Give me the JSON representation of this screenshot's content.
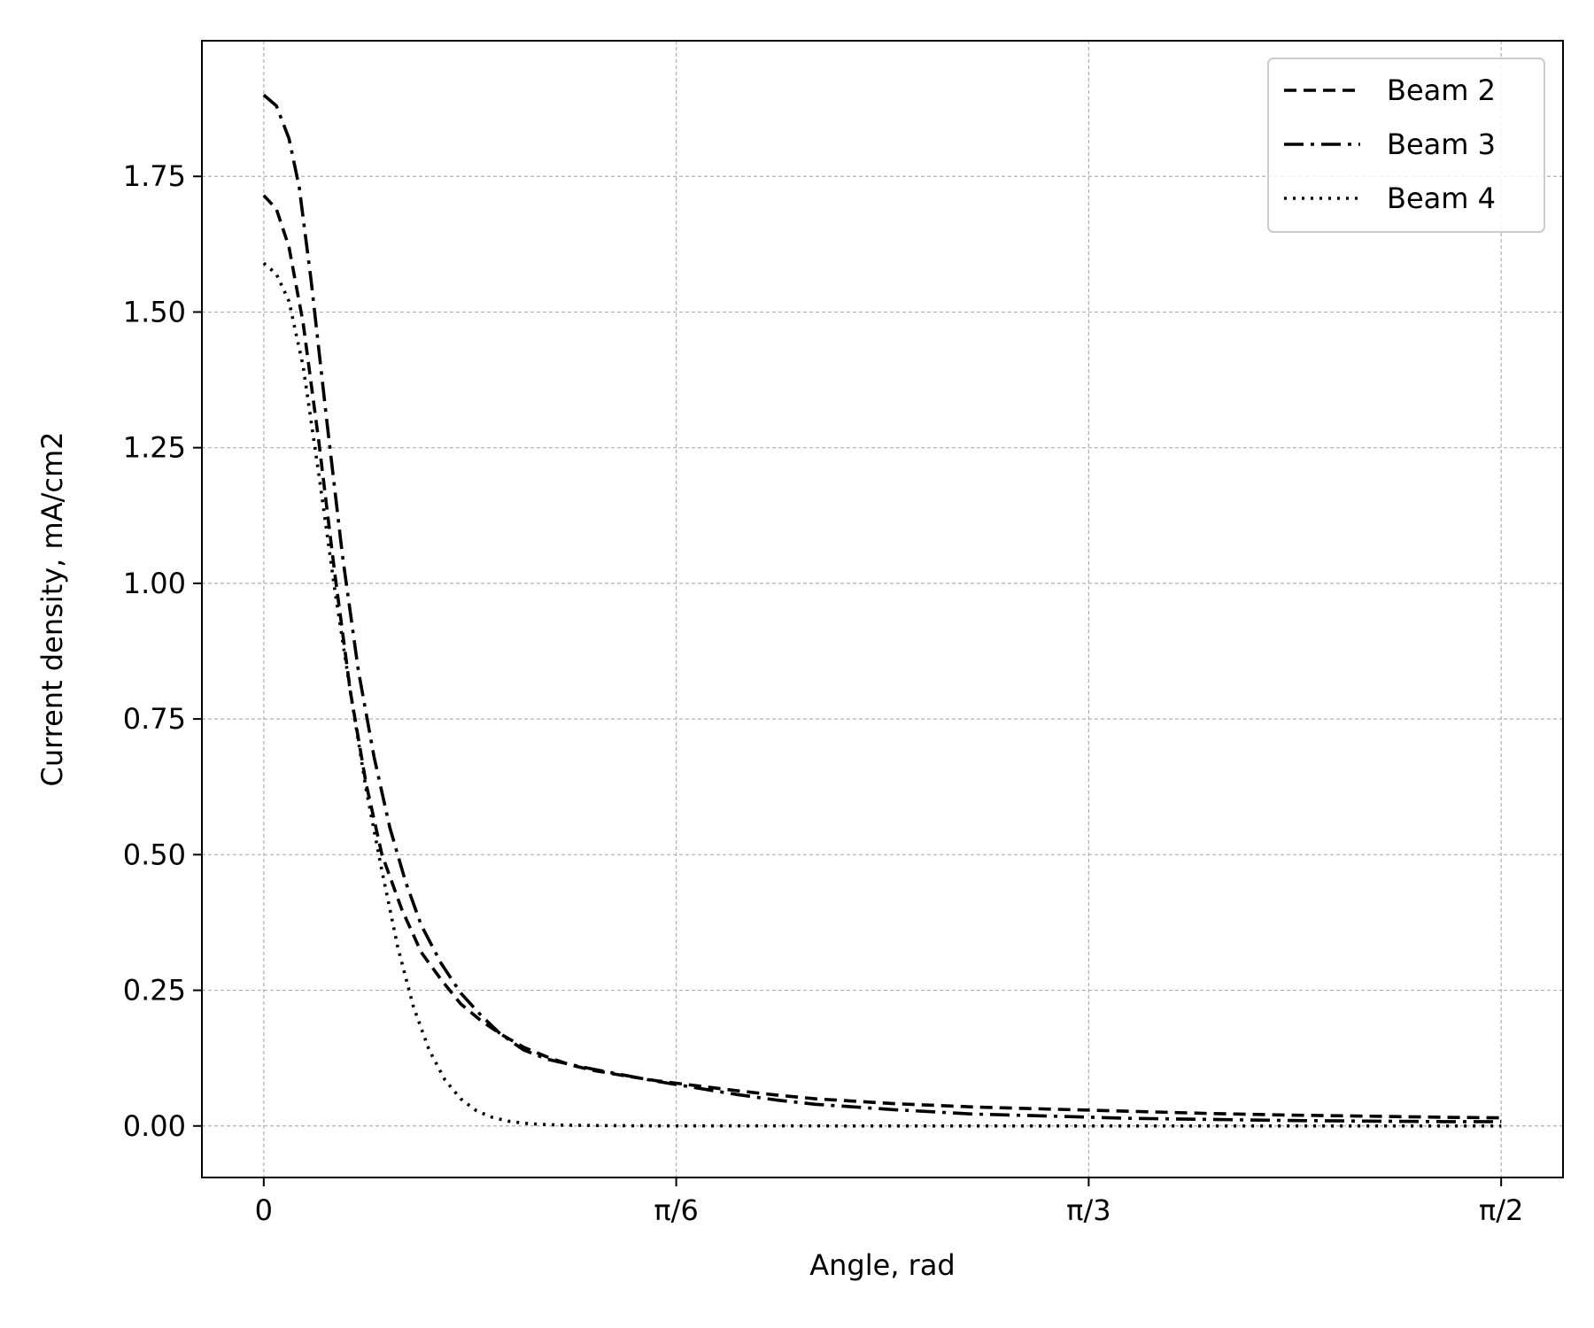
{
  "chart_data": {
    "type": "line",
    "xlabel": "Angle, rad",
    "ylabel": "Current density, mA/cm2",
    "xlim": [
      -0.0785,
      1.6493
    ],
    "ylim": [
      -0.095,
      2.0
    ],
    "xticks": [
      {
        "value": 0,
        "label": "0"
      },
      {
        "value": 0.5236,
        "label": "π/6"
      },
      {
        "value": 1.0472,
        "label": "π/3"
      },
      {
        "value": 1.5708,
        "label": "π/2"
      }
    ],
    "yticks": [
      {
        "value": 0.0,
        "label": "0.00"
      },
      {
        "value": 0.25,
        "label": "0.25"
      },
      {
        "value": 0.5,
        "label": "0.50"
      },
      {
        "value": 0.75,
        "label": "0.75"
      },
      {
        "value": 1.0,
        "label": "1.00"
      },
      {
        "value": 1.25,
        "label": "1.25"
      },
      {
        "value": 1.5,
        "label": "1.50"
      },
      {
        "value": 1.75,
        "label": "1.75"
      }
    ],
    "grid": true,
    "legend_position": "top-right",
    "series": [
      {
        "name": "Beam 2",
        "style": "dashed",
        "x": [
          0,
          0.016,
          0.032,
          0.05,
          0.07,
          0.09,
          0.11,
          0.13,
          0.15,
          0.175,
          0.2,
          0.225,
          0.25,
          0.275,
          0.3,
          0.33,
          0.36,
          0.39,
          0.42,
          0.46,
          0.5,
          0.55,
          0.6,
          0.65,
          0.7,
          0.8,
          0.9,
          1.0,
          1.1,
          1.2,
          1.3,
          1.4,
          1.5,
          1.5708
        ],
        "y": [
          1.715,
          1.69,
          1.62,
          1.48,
          1.26,
          1.02,
          0.8,
          0.63,
          0.5,
          0.4,
          0.32,
          0.27,
          0.225,
          0.195,
          0.17,
          0.145,
          0.127,
          0.112,
          0.102,
          0.092,
          0.083,
          0.074,
          0.065,
          0.057,
          0.05,
          0.041,
          0.035,
          0.031,
          0.027,
          0.023,
          0.02,
          0.018,
          0.016,
          0.015
        ]
      },
      {
        "name": "Beam 3",
        "style": "dashdot",
        "x": [
          0,
          0.016,
          0.032,
          0.045,
          0.06,
          0.08,
          0.1,
          0.12,
          0.14,
          0.16,
          0.18,
          0.2,
          0.225,
          0.25,
          0.275,
          0.3,
          0.33,
          0.36,
          0.39,
          0.42,
          0.46,
          0.5,
          0.55,
          0.6,
          0.65,
          0.7,
          0.8,
          0.9,
          1.0,
          1.1,
          1.2,
          1.3,
          1.4,
          1.5,
          1.5708
        ],
        "y": [
          1.9,
          1.88,
          1.82,
          1.73,
          1.56,
          1.3,
          1.05,
          0.84,
          0.68,
          0.55,
          0.45,
          0.37,
          0.3,
          0.245,
          0.205,
          0.17,
          0.14,
          0.123,
          0.113,
          0.104,
          0.093,
          0.082,
          0.07,
          0.058,
          0.048,
          0.04,
          0.03,
          0.022,
          0.018,
          0.014,
          0.012,
          0.01,
          0.009,
          0.008,
          0.008
        ]
      },
      {
        "name": "Beam 4",
        "style": "dotted",
        "x": [
          0,
          0.016,
          0.032,
          0.05,
          0.07,
          0.09,
          0.11,
          0.13,
          0.15,
          0.17,
          0.19,
          0.21,
          0.23,
          0.25,
          0.27,
          0.29,
          0.31,
          0.33,
          0.35,
          0.38,
          0.42,
          0.46,
          0.5,
          0.6,
          0.8,
          1.0,
          1.2,
          1.4,
          1.5708
        ],
        "y": [
          1.59,
          1.57,
          1.52,
          1.4,
          1.2,
          0.99,
          0.8,
          0.62,
          0.47,
          0.33,
          0.22,
          0.14,
          0.085,
          0.05,
          0.028,
          0.016,
          0.009,
          0.005,
          0.003,
          0.0015,
          0.0008,
          0.0004,
          0.0002,
          0.0001,
          0,
          0,
          0,
          0,
          0
        ]
      }
    ]
  }
}
